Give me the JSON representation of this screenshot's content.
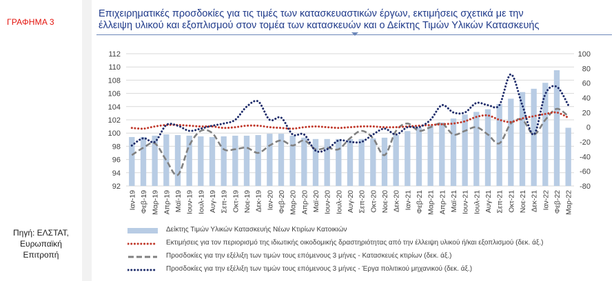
{
  "figure_label": "ΓΡΑΦΗΜΑ 3",
  "source_lines": [
    "Πηγή:  ΕΛΣΤΑΤ,",
    "Ευρωπαϊκή",
    "Επιτροπή"
  ],
  "title_lines": [
    "Επιχειρηματικές προσδοκίες για τις τιμές των κατασκευαστικών έργων, εκτιμήσεις  σχετικά με την",
    "έλλειψη υλικού και εξοπλισμού στον τομέα των κατασκευών και ο Δείκτης Τιμών Υλικών Κατασκευής"
  ],
  "chart_data": {
    "type": "bar",
    "categories": [
      "Ιαν-19",
      "Φεβ-19",
      "Μαρ-19",
      "Απρ-19",
      "Μαϊ-19",
      "Ιουν-19",
      "Ιουλ-19",
      "Αυγ-19",
      "Σεπ-19",
      "Οκτ-19",
      "Νοε-19",
      "Δεκ-19",
      "Ιαν-20",
      "Φεβ-20",
      "Μαρ-20",
      "Απρ-20",
      "Μαϊ-20",
      "Ιουν-20",
      "Ιουλ-20",
      "Αυγ-20",
      "Σεπ-20",
      "Οκτ-20",
      "Νοε-20",
      "Δεκ-20",
      "Ιαν-21",
      "Φεβ-21",
      "Μαρ-21",
      "Απρ-21",
      "Μαϊ-21",
      "Ιουν-21",
      "Ιουλ-21",
      "Αυγ-21",
      "Σεπ-21",
      "Οκτ-21",
      "Νοε-21",
      "Δεκ-21",
      "Ιαν-22",
      "Φεβ-22",
      "Μαρ-22"
    ],
    "x_tick_labels": [
      "Ιαν-19",
      "Φεβ-19",
      "Μαρ-19",
      "Απρ-19",
      "Μαϊ-19",
      "Ιουν-19",
      "Ιουλ-19",
      "Αυγ-19",
      "Σεπ-19",
      "Οκτ-19",
      "Νοε-19",
      "Δεκ-19",
      "Ιαν-20",
      "Φεβ-20",
      "Μαρ-20",
      "Απρ-20",
      "Μαϊ-20",
      "Ιουν-20",
      "Ιουλ-20",
      "Αυγ-20",
      "Σεπ-20",
      "Οκτ-20",
      "Νοε-20",
      "Δεκ-20",
      "Ιαν-21",
      "Φεβ-21",
      "Μαρ-21",
      "Απρ-21",
      "Μαϊ-21",
      "Ιουν-21",
      "Ιουλ-21",
      "Αυγ-21",
      "Σεπ-21",
      "Οκτ-21",
      "Νοε-21",
      "Δεκ-21",
      "Ιαν-22",
      "Φεβ-22",
      "Μαρ-22"
    ],
    "y_left": {
      "min": 92,
      "max": 112,
      "step": 2,
      "ticks": [
        "92",
        "94",
        "96",
        "98",
        "100",
        "102",
        "104",
        "106",
        "108",
        "110",
        "112"
      ]
    },
    "y_right": {
      "min": -80,
      "max": 100,
      "step": 20,
      "ticks": [
        "-80",
        "-60",
        "-40",
        "-20",
        "0",
        "20",
        "40",
        "60",
        "80",
        "100"
      ]
    },
    "grid": true,
    "legend_position": "bottom",
    "series": [
      {
        "name": "Δείκτης Τιμών Υλικών Κατασκευής Νέων Κτιρίων Κατοικιών",
        "kind": "bar",
        "axis": "left",
        "color": "#b8cce4",
        "values": [
          99.4,
          99.4,
          99.6,
          99.8,
          99.7,
          99.6,
          99.5,
          99.4,
          99.5,
          99.6,
          99.6,
          99.7,
          99.9,
          99.9,
          99.6,
          99.3,
          99.1,
          99.1,
          99.1,
          99.1,
          99.1,
          99.2,
          99.3,
          99.7,
          100.3,
          100.8,
          101.2,
          101.6,
          102.2,
          102.8,
          103.2,
          103.6,
          104.4,
          105.2,
          106.2,
          106.7,
          107.6,
          109.5,
          100.8
        ]
      },
      {
        "name": "Εκτιμήσεις για τον περιορισμό της ιδιωτικής οικοδομικής δραστηριότητας από την έλλειψη υλικού ή/και εξοπλισμού (δεκ. άξ.)",
        "kind": "dotted",
        "axis": "right",
        "color": "#c0392b",
        "values": [
          -1,
          -2,
          1,
          3,
          3,
          2,
          1,
          1,
          -1,
          0,
          2,
          2,
          0,
          -1,
          -2,
          0,
          1,
          0,
          -1,
          0,
          1,
          1,
          0,
          0,
          1,
          2,
          3,
          4,
          5,
          8,
          14,
          16,
          10,
          7,
          12,
          15,
          18,
          20,
          13
        ]
      },
      {
        "name": "Προσδοκίες για την εξέλιξη των τιμών τους επόμενους 3 μήνες - Κατασκευές κτιρίων (δεκ. άξ.)",
        "kind": "dashed",
        "axis": "right",
        "color": "#808080",
        "values": [
          -38,
          -28,
          -22,
          -45,
          -65,
          -25,
          -5,
          -8,
          -30,
          -30,
          -28,
          -35,
          -25,
          -18,
          -25,
          -18,
          -30,
          -28,
          -30,
          -15,
          -5,
          -15,
          -38,
          -5,
          5,
          -5,
          0,
          5,
          -10,
          -5,
          0,
          -10,
          -22,
          5,
          10,
          -10,
          10,
          25,
          15
        ]
      },
      {
        "name": "Προσδοκίες για την εξέλιξη των τιμών τους επόμενους 3 μήνες - Έργα πολιτικού μηχανικού (δεκ. άξ.)",
        "kind": "dotted",
        "axis": "right",
        "color": "#1f2d6b",
        "values": [
          -25,
          -15,
          -20,
          3,
          2,
          -5,
          -2,
          2,
          5,
          10,
          28,
          35,
          10,
          13,
          -10,
          -10,
          -32,
          -30,
          -18,
          -20,
          -20,
          -10,
          -2,
          -10,
          0,
          0,
          10,
          30,
          20,
          20,
          33,
          30,
          30,
          72,
          30,
          -10,
          45,
          55,
          30
        ]
      }
    ]
  }
}
